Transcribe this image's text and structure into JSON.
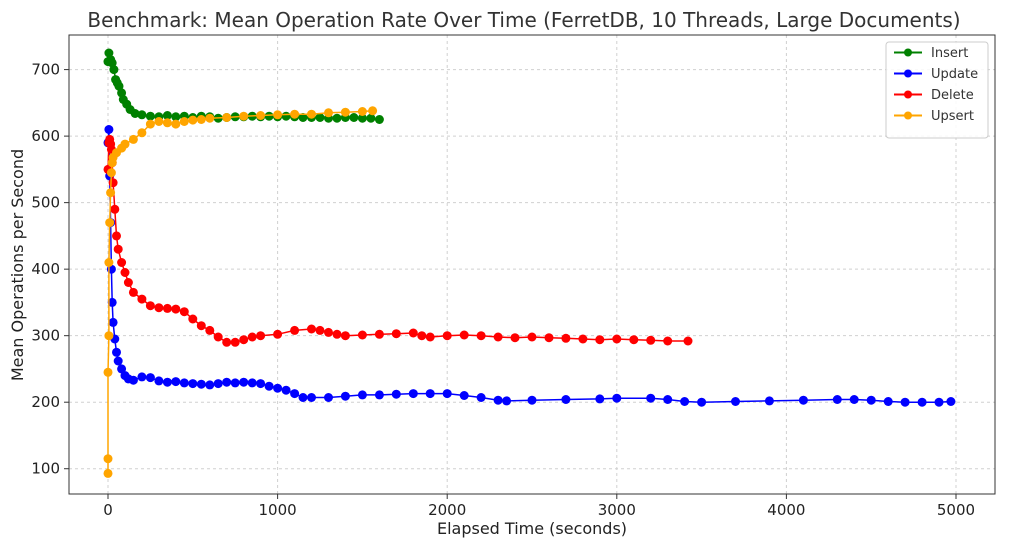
{
  "chart_data": {
    "type": "line",
    "title": "Benchmark: Mean Operation Rate Over Time (FerretDB, 10 Threads, Large Documents)",
    "xlabel": "Elapsed Time (seconds)",
    "ylabel": "Mean Operations per Second",
    "xlim": [
      -230,
      5230
    ],
    "ylim": [
      62,
      752
    ],
    "xticks": [
      0,
      1000,
      2000,
      3000,
      4000,
      5000
    ],
    "yticks": [
      100,
      200,
      300,
      400,
      500,
      600,
      700
    ],
    "grid": true,
    "legend_position": "top-right",
    "series": [
      {
        "name": "Insert",
        "color": "#008000",
        "points": [
          [
            0,
            712
          ],
          [
            5,
            725
          ],
          [
            15,
            715
          ],
          [
            25,
            710
          ],
          [
            35,
            700
          ],
          [
            45,
            685
          ],
          [
            55,
            680
          ],
          [
            65,
            675
          ],
          [
            80,
            665
          ],
          [
            90,
            655
          ],
          [
            110,
            648
          ],
          [
            130,
            640
          ],
          [
            160,
            634
          ],
          [
            200,
            632
          ],
          [
            250,
            630
          ],
          [
            300,
            629
          ],
          [
            350,
            631
          ],
          [
            400,
            629
          ],
          [
            450,
            630
          ],
          [
            500,
            628
          ],
          [
            550,
            630
          ],
          [
            600,
            629
          ],
          [
            650,
            627
          ],
          [
            700,
            628
          ],
          [
            750,
            629
          ],
          [
            800,
            629
          ],
          [
            850,
            630
          ],
          [
            900,
            629
          ],
          [
            950,
            630
          ],
          [
            1000,
            629
          ],
          [
            1050,
            630
          ],
          [
            1100,
            629
          ],
          [
            1150,
            628
          ],
          [
            1200,
            628
          ],
          [
            1250,
            628
          ],
          [
            1300,
            627
          ],
          [
            1350,
            627
          ],
          [
            1400,
            628
          ],
          [
            1450,
            628
          ],
          [
            1500,
            627
          ],
          [
            1550,
            627
          ],
          [
            1600,
            625
          ]
        ]
      },
      {
        "name": "Update",
        "color": "#0000ff",
        "points": [
          [
            0,
            590
          ],
          [
            5,
            610
          ],
          [
            10,
            540
          ],
          [
            15,
            470
          ],
          [
            20,
            400
          ],
          [
            25,
            350
          ],
          [
            30,
            320
          ],
          [
            40,
            295
          ],
          [
            50,
            275
          ],
          [
            60,
            262
          ],
          [
            80,
            250
          ],
          [
            100,
            240
          ],
          [
            120,
            235
          ],
          [
            150,
            233
          ],
          [
            200,
            238
          ],
          [
            250,
            237
          ],
          [
            300,
            232
          ],
          [
            350,
            230
          ],
          [
            400,
            231
          ],
          [
            450,
            229
          ],
          [
            500,
            228
          ],
          [
            550,
            227
          ],
          [
            600,
            226
          ],
          [
            650,
            228
          ],
          [
            700,
            230
          ],
          [
            750,
            229
          ],
          [
            800,
            230
          ],
          [
            850,
            229
          ],
          [
            900,
            228
          ],
          [
            950,
            224
          ],
          [
            1000,
            221
          ],
          [
            1050,
            218
          ],
          [
            1100,
            213
          ],
          [
            1150,
            207
          ],
          [
            1200,
            207
          ],
          [
            1300,
            207
          ],
          [
            1400,
            209
          ],
          [
            1500,
            211
          ],
          [
            1600,
            211
          ],
          [
            1700,
            212
          ],
          [
            1800,
            213
          ],
          [
            1900,
            213
          ],
          [
            2000,
            213
          ],
          [
            2100,
            210
          ],
          [
            2200,
            207
          ],
          [
            2300,
            203
          ],
          [
            2350,
            202
          ],
          [
            2500,
            203
          ],
          [
            2700,
            204
          ],
          [
            2900,
            205
          ],
          [
            3000,
            206
          ],
          [
            3200,
            206
          ],
          [
            3300,
            204
          ],
          [
            3400,
            201
          ],
          [
            3500,
            200
          ],
          [
            3700,
            201
          ],
          [
            3900,
            202
          ],
          [
            4100,
            203
          ],
          [
            4300,
            204
          ],
          [
            4400,
            204
          ],
          [
            4500,
            203
          ],
          [
            4600,
            201
          ],
          [
            4700,
            200
          ],
          [
            4800,
            200
          ],
          [
            4900,
            200
          ],
          [
            4970,
            201
          ]
        ]
      },
      {
        "name": "Delete",
        "color": "#ff0000",
        "points": [
          [
            0,
            550
          ],
          [
            5,
            590
          ],
          [
            10,
            595
          ],
          [
            15,
            588
          ],
          [
            20,
            580
          ],
          [
            25,
            560
          ],
          [
            30,
            530
          ],
          [
            40,
            490
          ],
          [
            50,
            450
          ],
          [
            60,
            430
          ],
          [
            80,
            410
          ],
          [
            100,
            395
          ],
          [
            120,
            380
          ],
          [
            150,
            365
          ],
          [
            200,
            355
          ],
          [
            250,
            345
          ],
          [
            300,
            342
          ],
          [
            350,
            341
          ],
          [
            400,
            340
          ],
          [
            450,
            336
          ],
          [
            500,
            325
          ],
          [
            550,
            315
          ],
          [
            600,
            308
          ],
          [
            650,
            298
          ],
          [
            700,
            290
          ],
          [
            750,
            290
          ],
          [
            800,
            294
          ],
          [
            850,
            298
          ],
          [
            900,
            300
          ],
          [
            1000,
            302
          ],
          [
            1100,
            308
          ],
          [
            1200,
            310
          ],
          [
            1250,
            308
          ],
          [
            1300,
            305
          ],
          [
            1350,
            302
          ],
          [
            1400,
            300
          ],
          [
            1500,
            301
          ],
          [
            1600,
            302
          ],
          [
            1700,
            303
          ],
          [
            1800,
            304
          ],
          [
            1850,
            300
          ],
          [
            1900,
            298
          ],
          [
            2000,
            300
          ],
          [
            2100,
            301
          ],
          [
            2200,
            300
          ],
          [
            2300,
            298
          ],
          [
            2400,
            297
          ],
          [
            2500,
            298
          ],
          [
            2600,
            297
          ],
          [
            2700,
            296
          ],
          [
            2800,
            295
          ],
          [
            2900,
            294
          ],
          [
            3000,
            295
          ],
          [
            3100,
            294
          ],
          [
            3200,
            293
          ],
          [
            3300,
            292
          ],
          [
            3420,
            292
          ]
        ]
      },
      {
        "name": "Upsert",
        "color": "#ffa500",
        "points": [
          [
            0,
            93
          ],
          [
            0,
            115
          ],
          [
            0,
            245
          ],
          [
            5,
            300
          ],
          [
            5,
            410
          ],
          [
            10,
            470
          ],
          [
            15,
            515
          ],
          [
            20,
            545
          ],
          [
            25,
            560
          ],
          [
            30,
            568
          ],
          [
            50,
            575
          ],
          [
            80,
            582
          ],
          [
            100,
            588
          ],
          [
            150,
            595
          ],
          [
            200,
            605
          ],
          [
            250,
            618
          ],
          [
            300,
            622
          ],
          [
            350,
            620
          ],
          [
            400,
            618
          ],
          [
            450,
            622
          ],
          [
            500,
            624
          ],
          [
            550,
            625
          ],
          [
            600,
            627
          ],
          [
            700,
            628
          ],
          [
            800,
            630
          ],
          [
            900,
            631
          ],
          [
            1000,
            632
          ],
          [
            1100,
            633
          ],
          [
            1200,
            633
          ],
          [
            1300,
            635
          ],
          [
            1400,
            636
          ],
          [
            1500,
            637
          ],
          [
            1560,
            638
          ]
        ]
      }
    ]
  }
}
